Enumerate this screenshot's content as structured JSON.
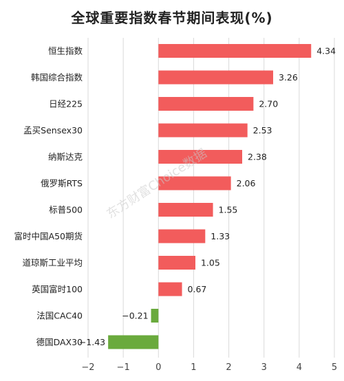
{
  "chart_data": {
    "type": "bar",
    "orientation": "horizontal",
    "title": "全球重要指数春节期间表现(%)",
    "categories": [
      "恒生指数",
      "韩国综合指数",
      "日经225",
      "孟买Sensex30",
      "纳斯达克",
      "俄罗斯RTS",
      "标普500",
      "富时中国A50期货",
      "道琼斯工业平均",
      "英国富时100",
      "法国CAC40",
      "德国DAX30"
    ],
    "values": [
      4.34,
      3.26,
      2.7,
      2.53,
      2.38,
      2.06,
      1.55,
      1.33,
      1.05,
      0.67,
      -0.21,
      -1.43
    ],
    "value_labels": [
      "4.34",
      "3.26",
      "2.70",
      "2.53",
      "2.38",
      "2.06",
      "1.55",
      "1.33",
      "1.05",
      "0.67",
      "−0.21",
      "−1.43"
    ],
    "xlim": [
      -2,
      5
    ],
    "xticks": [
      -2,
      -1,
      0,
      1,
      2,
      3,
      4,
      5
    ],
    "xtick_labels": [
      "−2",
      "−1",
      "0",
      "1",
      "2",
      "3",
      "4",
      "5"
    ],
    "grid": true,
    "colors": {
      "positive": "#f25c5c",
      "negative": "#6aaa3d",
      "grid": "#d9d9d9"
    },
    "watermark": "东方财富Choice数据"
  }
}
